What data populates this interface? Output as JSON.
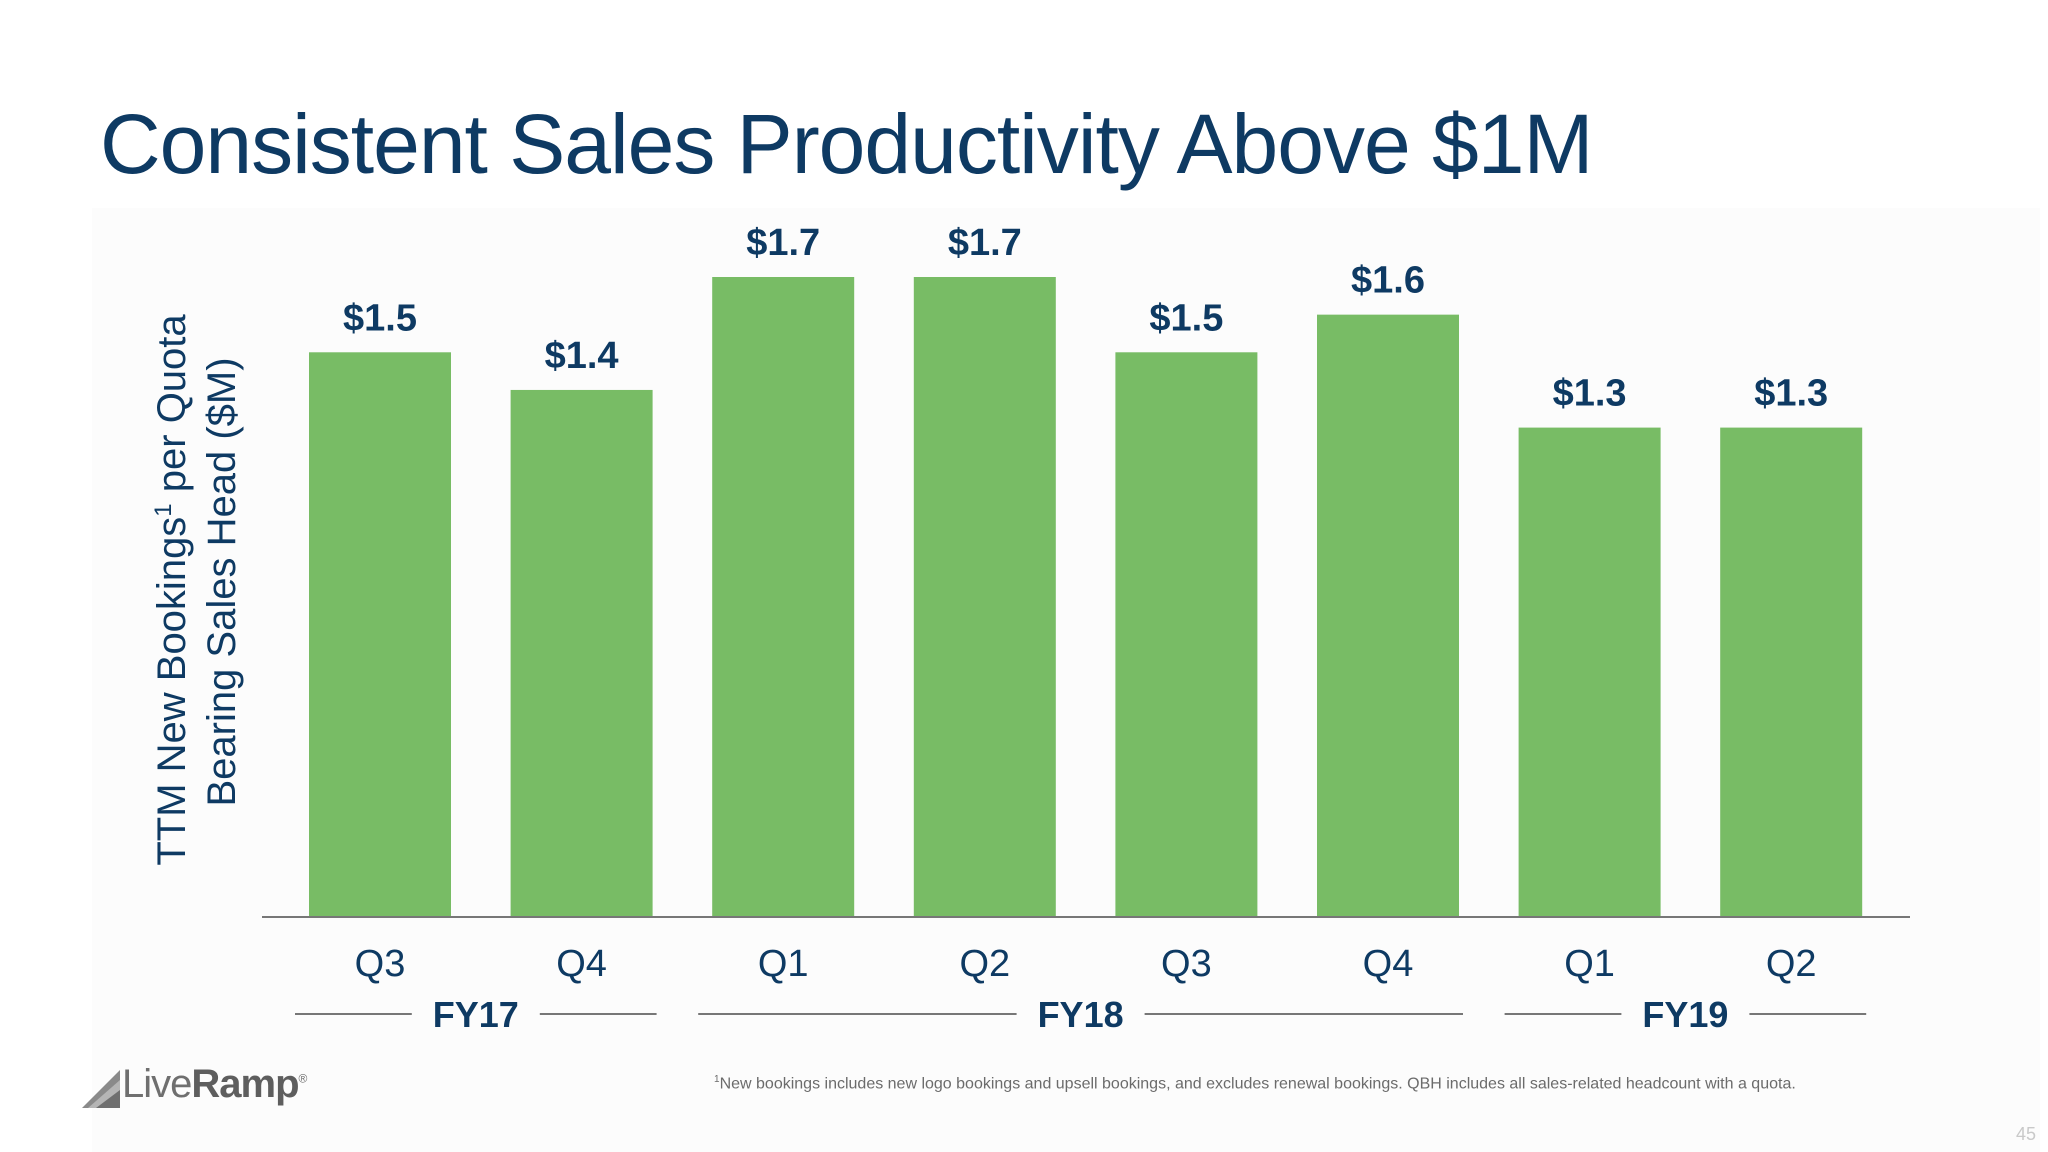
{
  "title": "Consistent Sales Productivity Above $1M",
  "colors": {
    "bar": "#78bc65",
    "title": "#0e3a63",
    "label": "#0e3a63",
    "axis": "#777777"
  },
  "chart_data": {
    "type": "bar",
    "title": "Consistent Sales Productivity Above $1M",
    "categories": [
      "Q3",
      "Q4",
      "Q1",
      "Q2",
      "Q3",
      "Q4",
      "Q1",
      "Q2"
    ],
    "values": [
      1.5,
      1.4,
      1.7,
      1.7,
      1.5,
      1.6,
      1.3,
      1.3
    ],
    "data_labels": [
      "$1.5",
      "$1.4",
      "$1.7",
      "$1.7",
      "$1.5",
      "$1.6",
      "$1.3",
      "$1.3"
    ],
    "ylabel_line1": "TTM New Bookings",
    "ylabel_sup": "1",
    "ylabel_line1_end": " per Quota",
    "ylabel_line2": "Bearing Sales Head ($M)",
    "xlabel": "",
    "ylim": [
      0,
      1.7
    ],
    "grid": false,
    "fiscal_groups": [
      {
        "label": "FY17",
        "start": 0,
        "end": 1
      },
      {
        "label": "FY18",
        "start": 2,
        "end": 5
      },
      {
        "label": "FY19",
        "start": 6,
        "end": 7
      }
    ]
  },
  "footnote": {
    "marker": "1",
    "text": "New bookings includes new logo bookings and upsell bookings, and excludes renewal bookings. QBH includes all sales-related headcount with a quota."
  },
  "logo": {
    "text_light": "Live",
    "text_bold": "Ramp",
    "mark": "®"
  },
  "page_number": "45"
}
